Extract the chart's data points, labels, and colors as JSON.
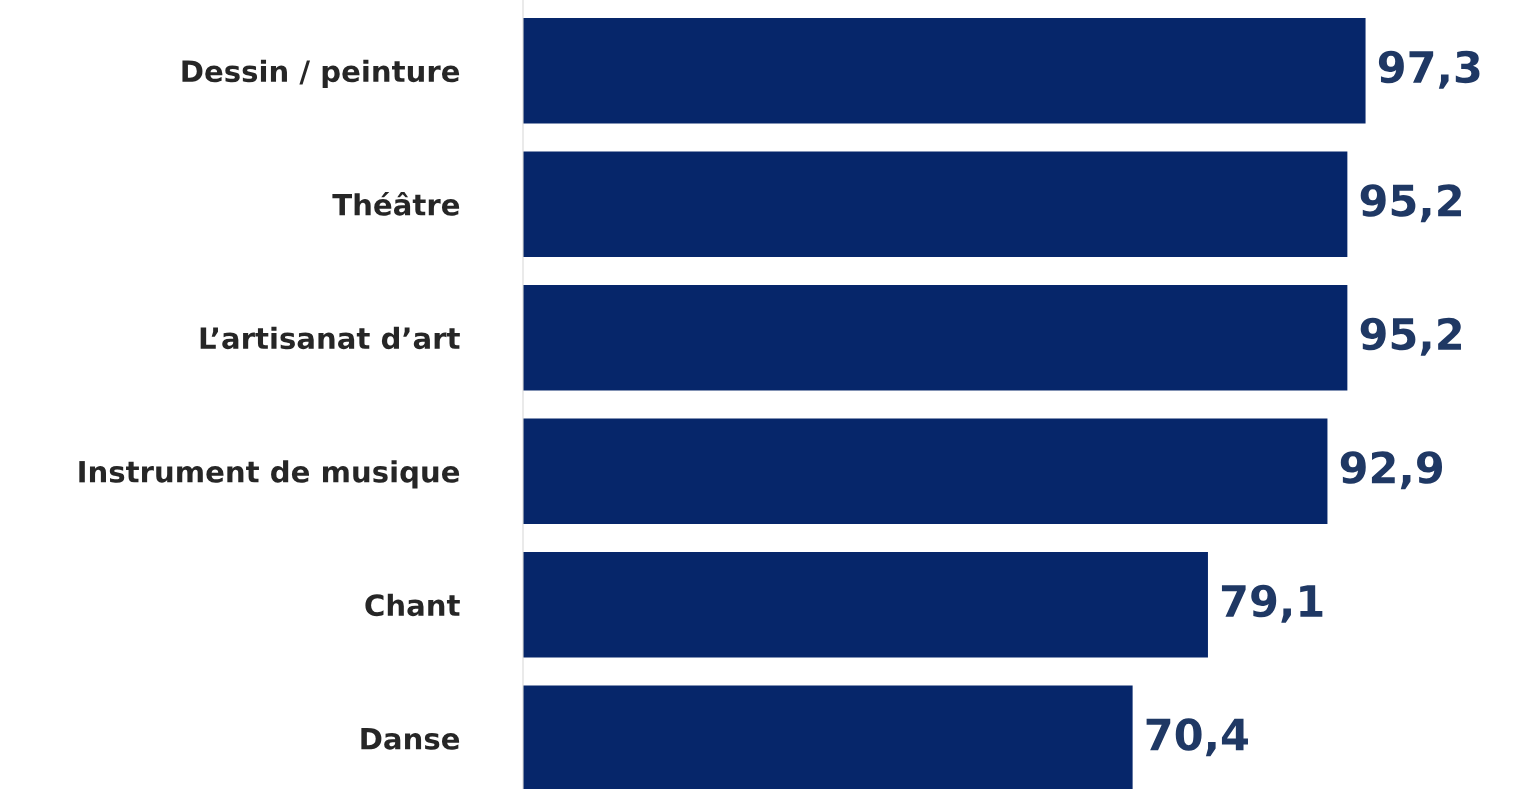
{
  "chart_data": {
    "type": "bar",
    "orientation": "horizontal",
    "categories": [
      "Dessin / peinture",
      "Théâtre",
      "L’artisanat d’art",
      "Instrument de musique",
      "Chant",
      "Danse"
    ],
    "values": [
      97.3,
      95.2,
      95.2,
      92.9,
      79.1,
      70.4
    ],
    "value_labels": [
      "97,3",
      "95,2",
      "95,2",
      "92,9",
      "79,1",
      "70,4"
    ],
    "color": "#06266a",
    "tick_labels": "y",
    "grid": false,
    "legend": false
  }
}
